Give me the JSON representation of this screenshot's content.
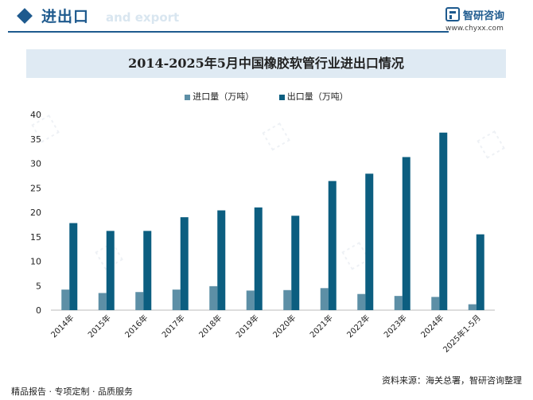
{
  "header": {
    "title": "进出口",
    "subtitle": "and export"
  },
  "brand": {
    "name": "智研咨询",
    "url": "www.chyxx.com"
  },
  "colors": {
    "import": "#5d8fa6",
    "export": "#0c5e80",
    "accent": "#1e5a8e",
    "title_band": "#dfeaf3"
  },
  "footer": {
    "left": "精品报告 · 专项定制 · 品质服务",
    "right": "资料来源：海关总署，智研咨询整理"
  },
  "chart_data": {
    "type": "bar",
    "title": "2014-2025年5月中国橡胶软管行业进出口情况",
    "categories": [
      "2014年",
      "2015年",
      "2016年",
      "2017年",
      "2018年",
      "2019年",
      "2020年",
      "2021年",
      "2022年",
      "2023年",
      "2024年",
      "2025年1-5月"
    ],
    "series": [
      {
        "name": "进口量（万吨）",
        "values": [
          4.2,
          3.5,
          3.7,
          4.2,
          4.9,
          4.0,
          4.1,
          4.5,
          3.3,
          2.9,
          2.7,
          1.2
        ]
      },
      {
        "name": "出口量（万吨）",
        "values": [
          17.8,
          16.2,
          16.2,
          19.0,
          20.4,
          21.0,
          19.3,
          26.4,
          27.9,
          31.3,
          36.3,
          15.5
        ]
      }
    ],
    "ylim": [
      0,
      40
    ],
    "yticks": [
      0,
      5,
      10,
      15,
      20,
      25,
      30,
      35,
      40
    ],
    "legend": "top-center",
    "grid": false
  }
}
